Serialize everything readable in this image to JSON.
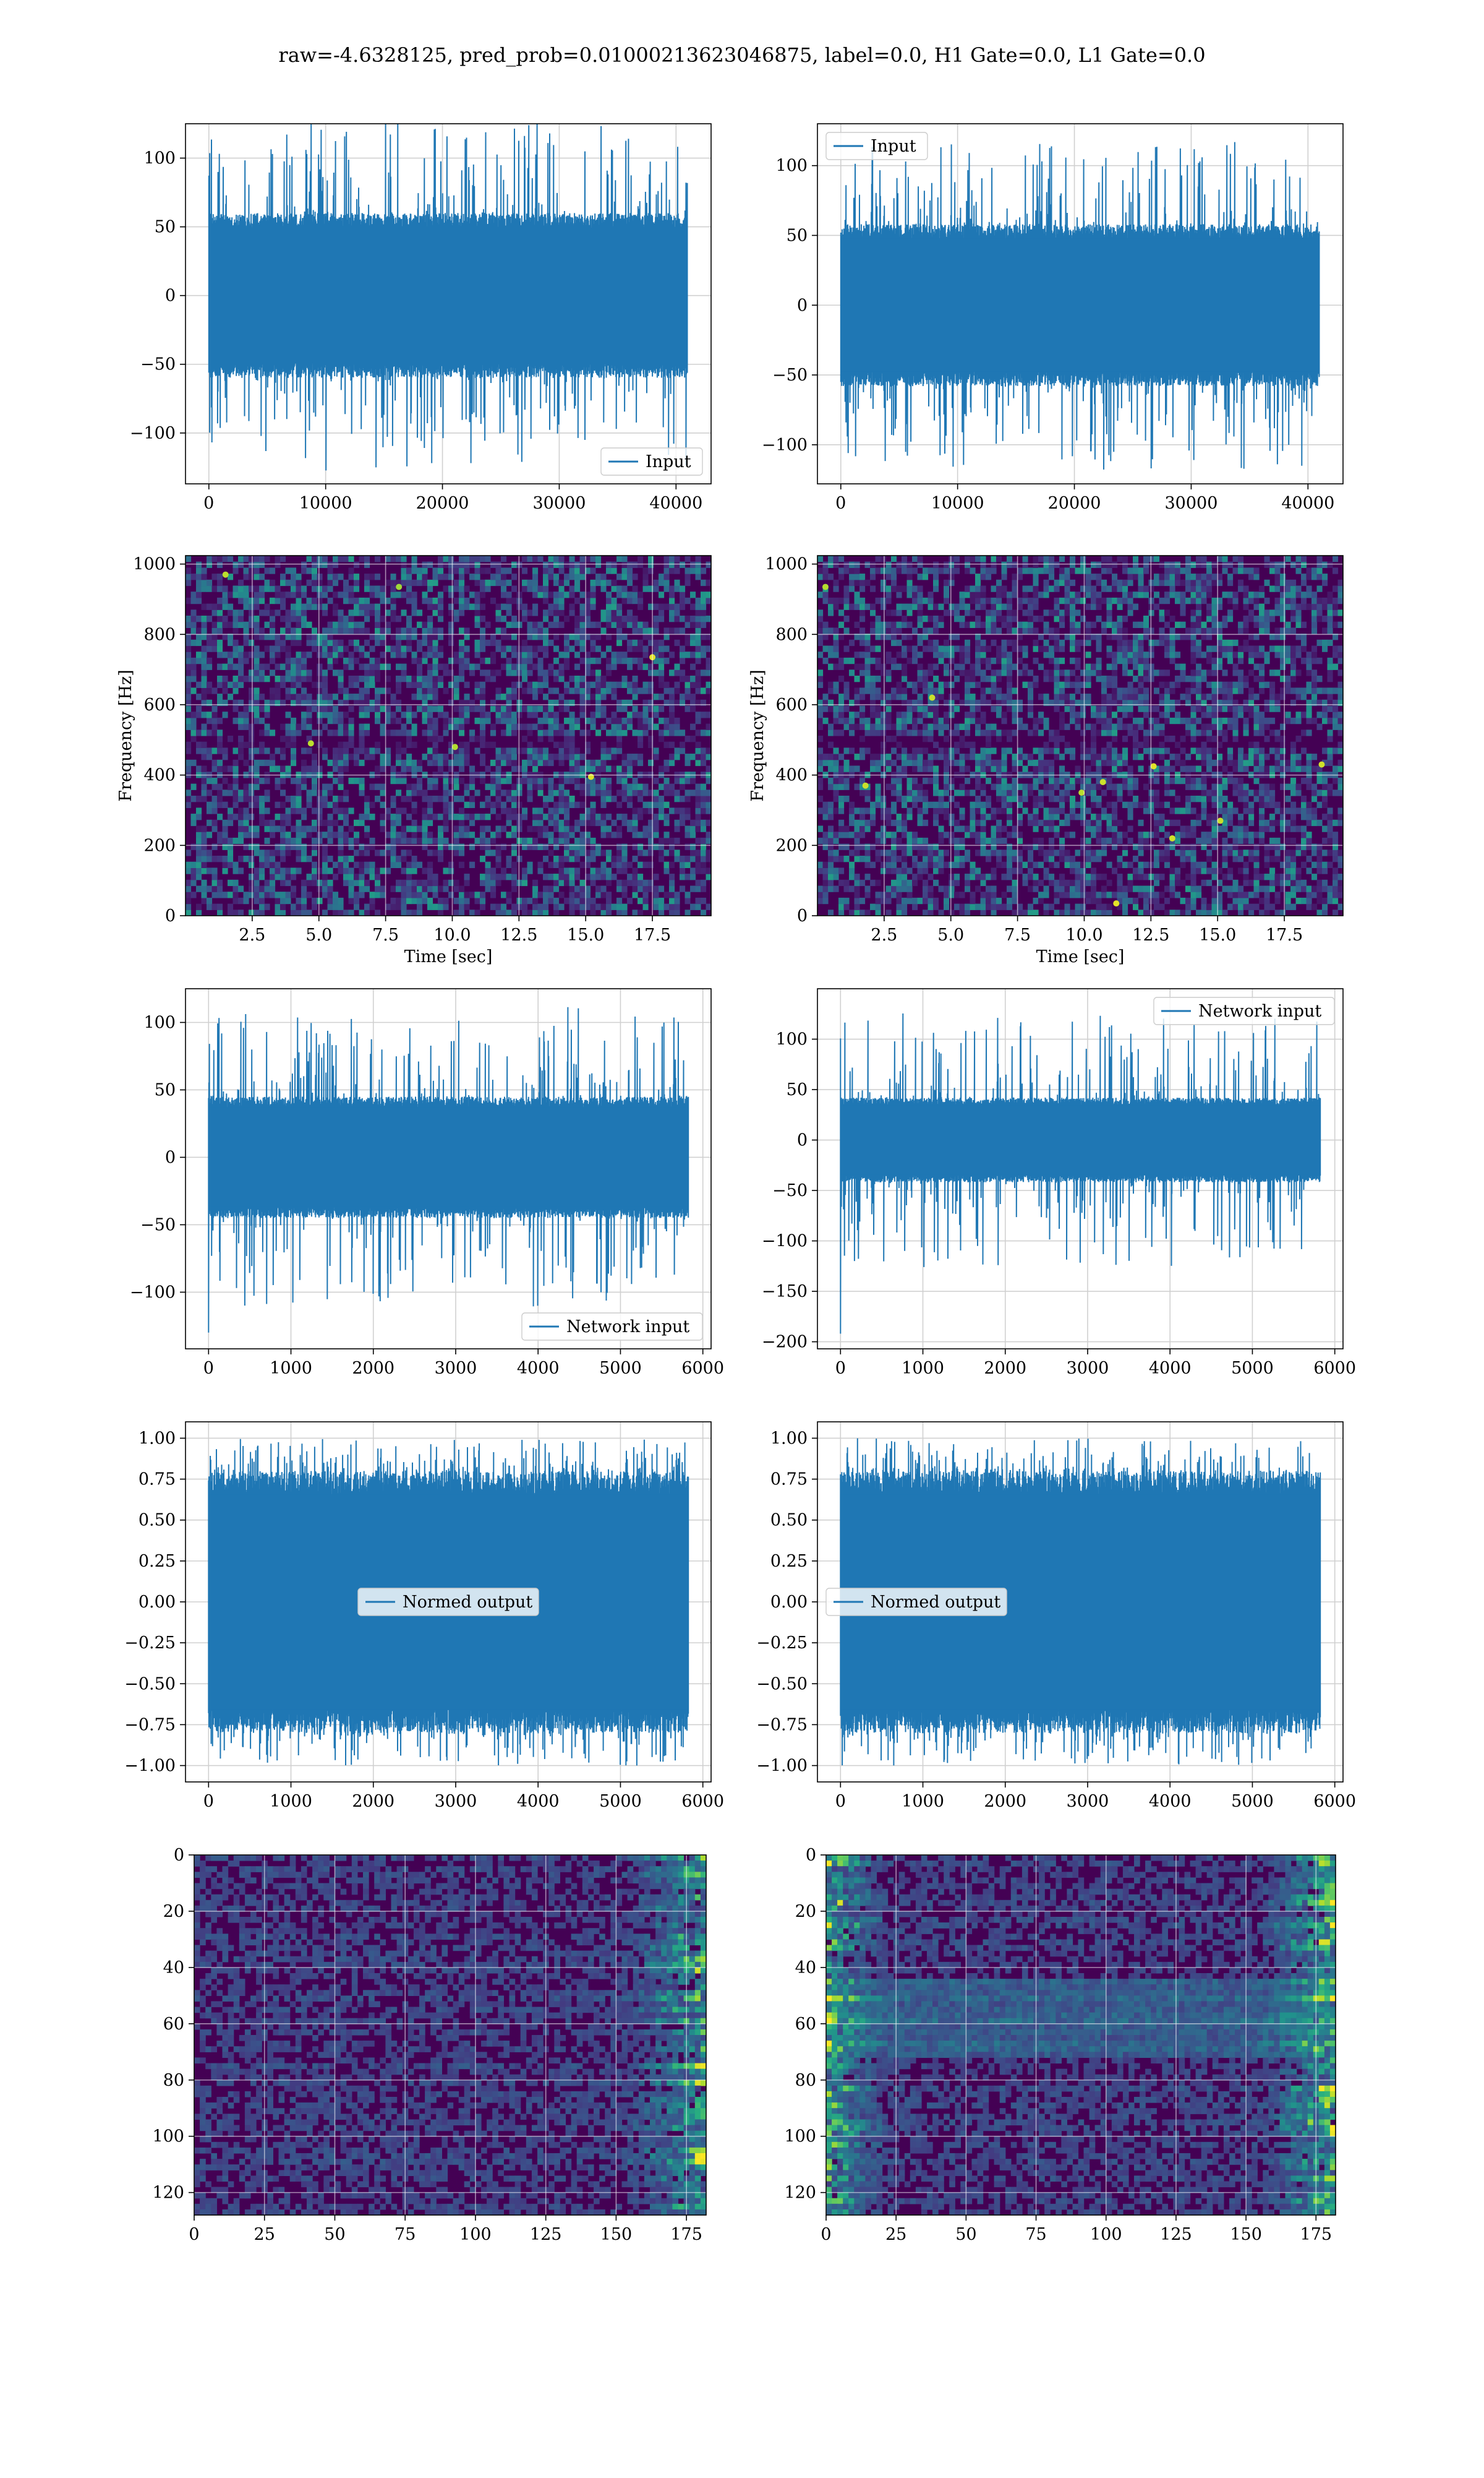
{
  "figure": {
    "suptitle": "raw=-4.6328125, pred_prob=0.01000213623046875, label=0.0, H1 Gate=0.0, L1 Gate=0.0"
  },
  "colors": {
    "line": "#1f77b4",
    "grid": "#d0d0d0",
    "viridis": [
      "#440154",
      "#472d7b",
      "#3b528b",
      "#2c728e",
      "#21918c",
      "#28ae80",
      "#5ec962",
      "#addc30",
      "#fde725"
    ]
  },
  "chart_data": [
    {
      "id": "input-h1",
      "type": "line",
      "row": 0,
      "col": 0,
      "xlabel": "",
      "ylabel": "",
      "xlim": [
        -2000,
        43000
      ],
      "ylim": [
        -137,
        125
      ],
      "xticks": [
        0,
        10000,
        20000,
        30000,
        40000
      ],
      "xtick_labels": [
        "0",
        "10000",
        "20000",
        "30000",
        "40000"
      ],
      "yticks": [
        -100,
        -50,
        0,
        50,
        100
      ],
      "ytick_labels": [
        "−100",
        "−50",
        "0",
        "50",
        "100"
      ],
      "grid": true,
      "legend": {
        "entries": [
          "Input"
        ],
        "position": "lower-right"
      },
      "series": [
        {
          "name": "Input",
          "n_samples": 40960,
          "amplitude_typical": 60,
          "amplitude_peak": 128
        }
      ]
    },
    {
      "id": "input-l1",
      "type": "line",
      "row": 0,
      "col": 1,
      "xlabel": "",
      "ylabel": "",
      "xlim": [
        -2000,
        43000
      ],
      "ylim": [
        -128,
        130
      ],
      "xticks": [
        0,
        10000,
        20000,
        30000,
        40000
      ],
      "xtick_labels": [
        "0",
        "10000",
        "20000",
        "30000",
        "40000"
      ],
      "yticks": [
        -100,
        -50,
        0,
        50,
        100
      ],
      "ytick_labels": [
        "−100",
        "−50",
        "0",
        "50",
        "100"
      ],
      "grid": true,
      "legend": {
        "entries": [
          "Input"
        ],
        "position": "upper-left"
      },
      "series": [
        {
          "name": "Input",
          "n_samples": 40960,
          "amplitude_typical": 58,
          "amplitude_peak": 118
        }
      ]
    },
    {
      "id": "spectrogram-h1",
      "type": "heatmap",
      "row": 1,
      "col": 0,
      "xlabel": "Time [sec]",
      "ylabel": "Frequency [Hz]",
      "xlim": [
        0,
        19.7
      ],
      "ylim": [
        0,
        1024
      ],
      "xticks": [
        2.5,
        5,
        7.5,
        10,
        12.5,
        15,
        17.5
      ],
      "xtick_labels": [
        "2.5",
        "5.0",
        "7.5",
        "10.0",
        "12.5",
        "15.0",
        "17.5"
      ],
      "yticks": [
        0,
        200,
        400,
        600,
        800,
        1000
      ],
      "ytick_labels": [
        "0",
        "200",
        "400",
        "600",
        "800",
        "1000"
      ],
      "grid": true,
      "colormap": "viridis",
      "hot_spots": [
        [
          4.7,
          490
        ],
        [
          10.1,
          480
        ],
        [
          17.5,
          735
        ],
        [
          8.0,
          935
        ],
        [
          1.5,
          970
        ],
        [
          15.2,
          395
        ]
      ],
      "dark_bands_hz": [
        490
      ]
    },
    {
      "id": "spectrogram-l1",
      "type": "heatmap",
      "row": 1,
      "col": 1,
      "xlabel": "Time [sec]",
      "ylabel": "Frequency [Hz]",
      "xlim": [
        0,
        19.7
      ],
      "ylim": [
        0,
        1024
      ],
      "xticks": [
        2.5,
        5,
        7.5,
        10,
        12.5,
        15,
        17.5
      ],
      "xtick_labels": [
        "2.5",
        "5.0",
        "7.5",
        "10.0",
        "12.5",
        "15.0",
        "17.5"
      ],
      "yticks": [
        0,
        200,
        400,
        600,
        800,
        1000
      ],
      "ytick_labels": [
        "0",
        "200",
        "400",
        "600",
        "800",
        "1000"
      ],
      "grid": true,
      "colormap": "viridis",
      "hot_spots": [
        [
          0.3,
          935
        ],
        [
          4.3,
          620
        ],
        [
          9.9,
          350
        ],
        [
          11.2,
          35
        ],
        [
          12.6,
          425
        ],
        [
          15.1,
          270
        ],
        [
          18.9,
          430
        ],
        [
          1.8,
          370
        ],
        [
          10.7,
          380
        ],
        [
          13.3,
          220
        ]
      ],
      "dark_bands_hz": [
        495
      ]
    },
    {
      "id": "network-input-h1",
      "type": "line",
      "row": 2,
      "col": 0,
      "xlabel": "",
      "ylabel": "",
      "xlim": [
        -280,
        6100
      ],
      "ylim": [
        -142,
        125
      ],
      "xticks": [
        0,
        1000,
        2000,
        3000,
        4000,
        5000,
        6000
      ],
      "xtick_labels": [
        "0",
        "1000",
        "2000",
        "3000",
        "4000",
        "5000",
        "6000"
      ],
      "yticks": [
        -100,
        -50,
        0,
        50,
        100
      ],
      "ytick_labels": [
        "−100",
        "−50",
        "0",
        "50",
        "100"
      ],
      "grid": true,
      "legend": {
        "entries": [
          "Network input"
        ],
        "position": "lower-right"
      },
      "series": [
        {
          "name": "Network input",
          "n_samples": 5824,
          "amplitude_typical": 45,
          "amplitude_peak": 112,
          "initial_spike": -130
        }
      ]
    },
    {
      "id": "network-input-l1",
      "type": "line",
      "row": 2,
      "col": 1,
      "xlabel": "",
      "ylabel": "",
      "xlim": [
        -280,
        6100
      ],
      "ylim": [
        -207,
        150
      ],
      "xticks": [
        0,
        1000,
        2000,
        3000,
        4000,
        5000,
        6000
      ],
      "xtick_labels": [
        "0",
        "1000",
        "2000",
        "3000",
        "4000",
        "5000",
        "6000"
      ],
      "yticks": [
        -200,
        -150,
        -100,
        -50,
        0,
        50,
        100
      ],
      "ytick_labels": [
        "−200",
        "−150",
        "−100",
        "−50",
        "0",
        "50",
        "100"
      ],
      "grid": true,
      "legend": {
        "entries": [
          "Network input"
        ],
        "position": "upper-right"
      },
      "series": [
        {
          "name": "Network input",
          "n_samples": 5824,
          "amplitude_typical": 42,
          "amplitude_peak": 126,
          "initial_spike": -192
        }
      ]
    },
    {
      "id": "normed-output-h1",
      "type": "line",
      "row": 3,
      "col": 0,
      "xlabel": "",
      "ylabel": "",
      "xlim": [
        -280,
        6100
      ],
      "ylim": [
        -1.1,
        1.1
      ],
      "xticks": [
        0,
        1000,
        2000,
        3000,
        4000,
        5000,
        6000
      ],
      "xtick_labels": [
        "0",
        "1000",
        "2000",
        "3000",
        "4000",
        "5000",
        "6000"
      ],
      "yticks": [
        -1,
        -0.75,
        -0.5,
        -0.25,
        0,
        0.25,
        0.5,
        0.75,
        1
      ],
      "ytick_labels": [
        "−1.00",
        "−0.75",
        "−0.50",
        "−0.25",
        "0.00",
        "0.25",
        "0.50",
        "0.75",
        "1.00"
      ],
      "grid": true,
      "legend": {
        "entries": [
          "Normed output"
        ],
        "position": "center"
      },
      "series": [
        {
          "name": "Normed output",
          "n_samples": 5824,
          "amplitude_typical": 0.8,
          "amplitude_peak": 1.0
        }
      ]
    },
    {
      "id": "normed-output-l1",
      "type": "line",
      "row": 3,
      "col": 1,
      "xlabel": "",
      "ylabel": "",
      "xlim": [
        -280,
        6100
      ],
      "ylim": [
        -1.1,
        1.1
      ],
      "xticks": [
        0,
        1000,
        2000,
        3000,
        4000,
        5000,
        6000
      ],
      "xtick_labels": [
        "0",
        "1000",
        "2000",
        "3000",
        "4000",
        "5000",
        "6000"
      ],
      "yticks": [
        -1,
        -0.75,
        -0.5,
        -0.25,
        0,
        0.25,
        0.5,
        0.75,
        1
      ],
      "ytick_labels": [
        "−1.00",
        "−0.75",
        "−0.50",
        "−0.25",
        "0.00",
        "0.25",
        "0.50",
        "0.75",
        "1.00"
      ],
      "grid": true,
      "legend": {
        "entries": [
          "Normed output"
        ],
        "position": "center-left"
      },
      "series": [
        {
          "name": "Normed output",
          "n_samples": 5824,
          "amplitude_typical": 0.8,
          "amplitude_peak": 1.0
        }
      ]
    },
    {
      "id": "feature-map-h1",
      "type": "heatmap",
      "row": 4,
      "col": 0,
      "xlabel": "",
      "ylabel": "",
      "xlim": [
        0,
        182
      ],
      "ylim": [
        128,
        0
      ],
      "xticks": [
        0,
        25,
        50,
        75,
        100,
        125,
        150,
        175
      ],
      "xtick_labels": [
        "0",
        "25",
        "50",
        "75",
        "100",
        "125",
        "150",
        "175"
      ],
      "yticks": [
        0,
        20,
        40,
        60,
        80,
        100,
        120
      ],
      "ytick_labels": [
        "0",
        "20",
        "40",
        "60",
        "80",
        "100",
        "120"
      ],
      "grid": true,
      "colormap": "viridis",
      "rows": 128,
      "cols": 182,
      "bright_region": "right-edge"
    },
    {
      "id": "feature-map-l1",
      "type": "heatmap",
      "row": 4,
      "col": 1,
      "xlabel": "",
      "ylabel": "",
      "xlim": [
        0,
        182
      ],
      "ylim": [
        128,
        0
      ],
      "xticks": [
        0,
        25,
        50,
        75,
        100,
        125,
        150,
        175
      ],
      "xtick_labels": [
        "0",
        "25",
        "50",
        "75",
        "100",
        "125",
        "150",
        "175"
      ],
      "yticks": [
        0,
        20,
        40,
        60,
        80,
        100,
        120
      ],
      "ytick_labels": [
        "0",
        "20",
        "40",
        "60",
        "80",
        "100",
        "120"
      ],
      "grid": true,
      "colormap": "viridis",
      "rows": 128,
      "cols": 182,
      "bright_region": "both-edges"
    }
  ]
}
